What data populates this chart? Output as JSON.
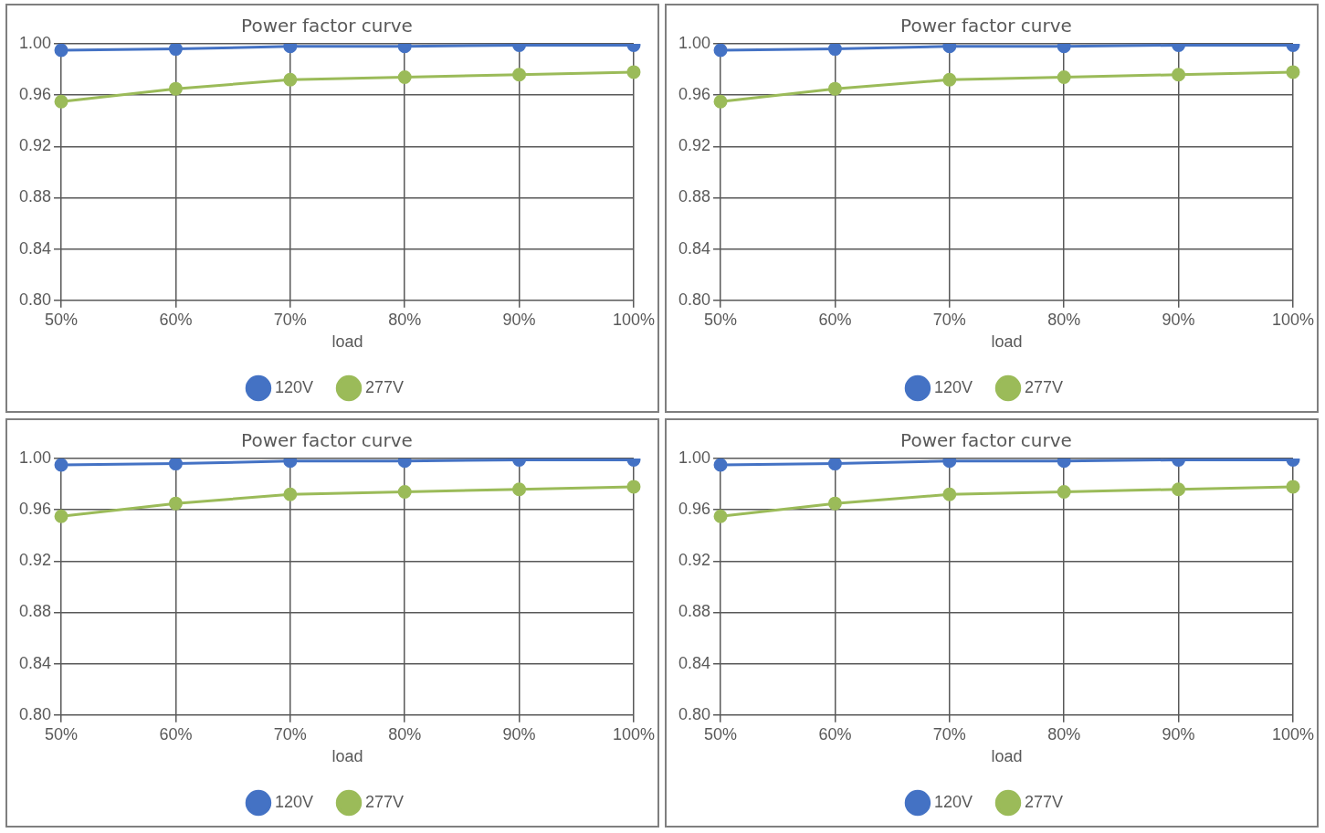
{
  "chart_data": [
    {
      "type": "line",
      "title": "Power factor curve",
      "xlabel": "load",
      "categories": [
        "50%",
        "60%",
        "70%",
        "80%",
        "90%",
        "100%"
      ],
      "series": [
        {
          "name": "120V",
          "color": "#4472c4",
          "values": [
            0.995,
            0.996,
            0.998,
            0.998,
            0.999,
            0.999
          ]
        },
        {
          "name": "277V",
          "color": "#9bbb59",
          "values": [
            0.955,
            0.965,
            0.972,
            0.974,
            0.976,
            0.978
          ]
        }
      ],
      "ylim": [
        0.8,
        1.0
      ],
      "yticks": [
        {
          "value": 0.8,
          "label": "0.80"
        },
        {
          "value": 0.84,
          "label": "0.84"
        },
        {
          "value": 0.88,
          "label": "0.88"
        },
        {
          "value": 0.92,
          "label": "0.92"
        },
        {
          "value": 0.96,
          "label": "0.96"
        },
        {
          "value": 1.0,
          "label": "1.00"
        }
      ],
      "grid": true,
      "legend": "bottom",
      "marker": "circle"
    },
    {
      "type": "line",
      "title": "Power factor curve",
      "xlabel": "load",
      "categories": [
        "50%",
        "60%",
        "70%",
        "80%",
        "90%",
        "100%"
      ],
      "series": [
        {
          "name": "120V",
          "color": "#4472c4",
          "values": [
            0.995,
            0.996,
            0.998,
            0.998,
            0.999,
            0.999
          ]
        },
        {
          "name": "277V",
          "color": "#9bbb59",
          "values": [
            0.955,
            0.965,
            0.972,
            0.974,
            0.976,
            0.978
          ]
        }
      ],
      "ylim": [
        0.8,
        1.0
      ],
      "yticks": [
        {
          "value": 0.8,
          "label": "0.80"
        },
        {
          "value": 0.84,
          "label": "0.84"
        },
        {
          "value": 0.88,
          "label": "0.88"
        },
        {
          "value": 0.92,
          "label": "0.92"
        },
        {
          "value": 0.96,
          "label": "0.96"
        },
        {
          "value": 1.0,
          "label": "1.00"
        }
      ],
      "grid": true,
      "legend": "bottom",
      "marker": "circle"
    },
    {
      "type": "line",
      "title": "Power factor curve",
      "xlabel": "load",
      "categories": [
        "50%",
        "60%",
        "70%",
        "80%",
        "90%",
        "100%"
      ],
      "series": [
        {
          "name": "120V",
          "color": "#4472c4",
          "values": [
            0.995,
            0.996,
            0.998,
            0.998,
            0.999,
            0.999
          ]
        },
        {
          "name": "277V",
          "color": "#9bbb59",
          "values": [
            0.955,
            0.965,
            0.972,
            0.974,
            0.976,
            0.978
          ]
        }
      ],
      "ylim": [
        0.8,
        1.0
      ],
      "yticks": [
        {
          "value": 0.8,
          "label": "0.80"
        },
        {
          "value": 0.84,
          "label": "0.84"
        },
        {
          "value": 0.88,
          "label": "0.88"
        },
        {
          "value": 0.92,
          "label": "0.92"
        },
        {
          "value": 0.96,
          "label": "0.96"
        },
        {
          "value": 1.0,
          "label": "1.00"
        }
      ],
      "grid": true,
      "legend": "bottom",
      "marker": "circle"
    },
    {
      "type": "line",
      "title": "Power factor curve",
      "xlabel": "load",
      "categories": [
        "50%",
        "60%",
        "70%",
        "80%",
        "90%",
        "100%"
      ],
      "series": [
        {
          "name": "120V",
          "color": "#4472c4",
          "values": [
            0.995,
            0.996,
            0.998,
            0.998,
            0.999,
            0.999
          ]
        },
        {
          "name": "277V",
          "color": "#9bbb59",
          "values": [
            0.955,
            0.965,
            0.972,
            0.974,
            0.976,
            0.978
          ]
        }
      ],
      "ylim": [
        0.8,
        1.0
      ],
      "yticks": [
        {
          "value": 0.8,
          "label": "0.80"
        },
        {
          "value": 0.84,
          "label": "0.84"
        },
        {
          "value": 0.88,
          "label": "0.88"
        },
        {
          "value": 0.92,
          "label": "0.92"
        },
        {
          "value": 0.96,
          "label": "0.96"
        },
        {
          "value": 1.0,
          "label": "1.00"
        }
      ],
      "grid": true,
      "legend": "bottom",
      "marker": "circle"
    }
  ]
}
